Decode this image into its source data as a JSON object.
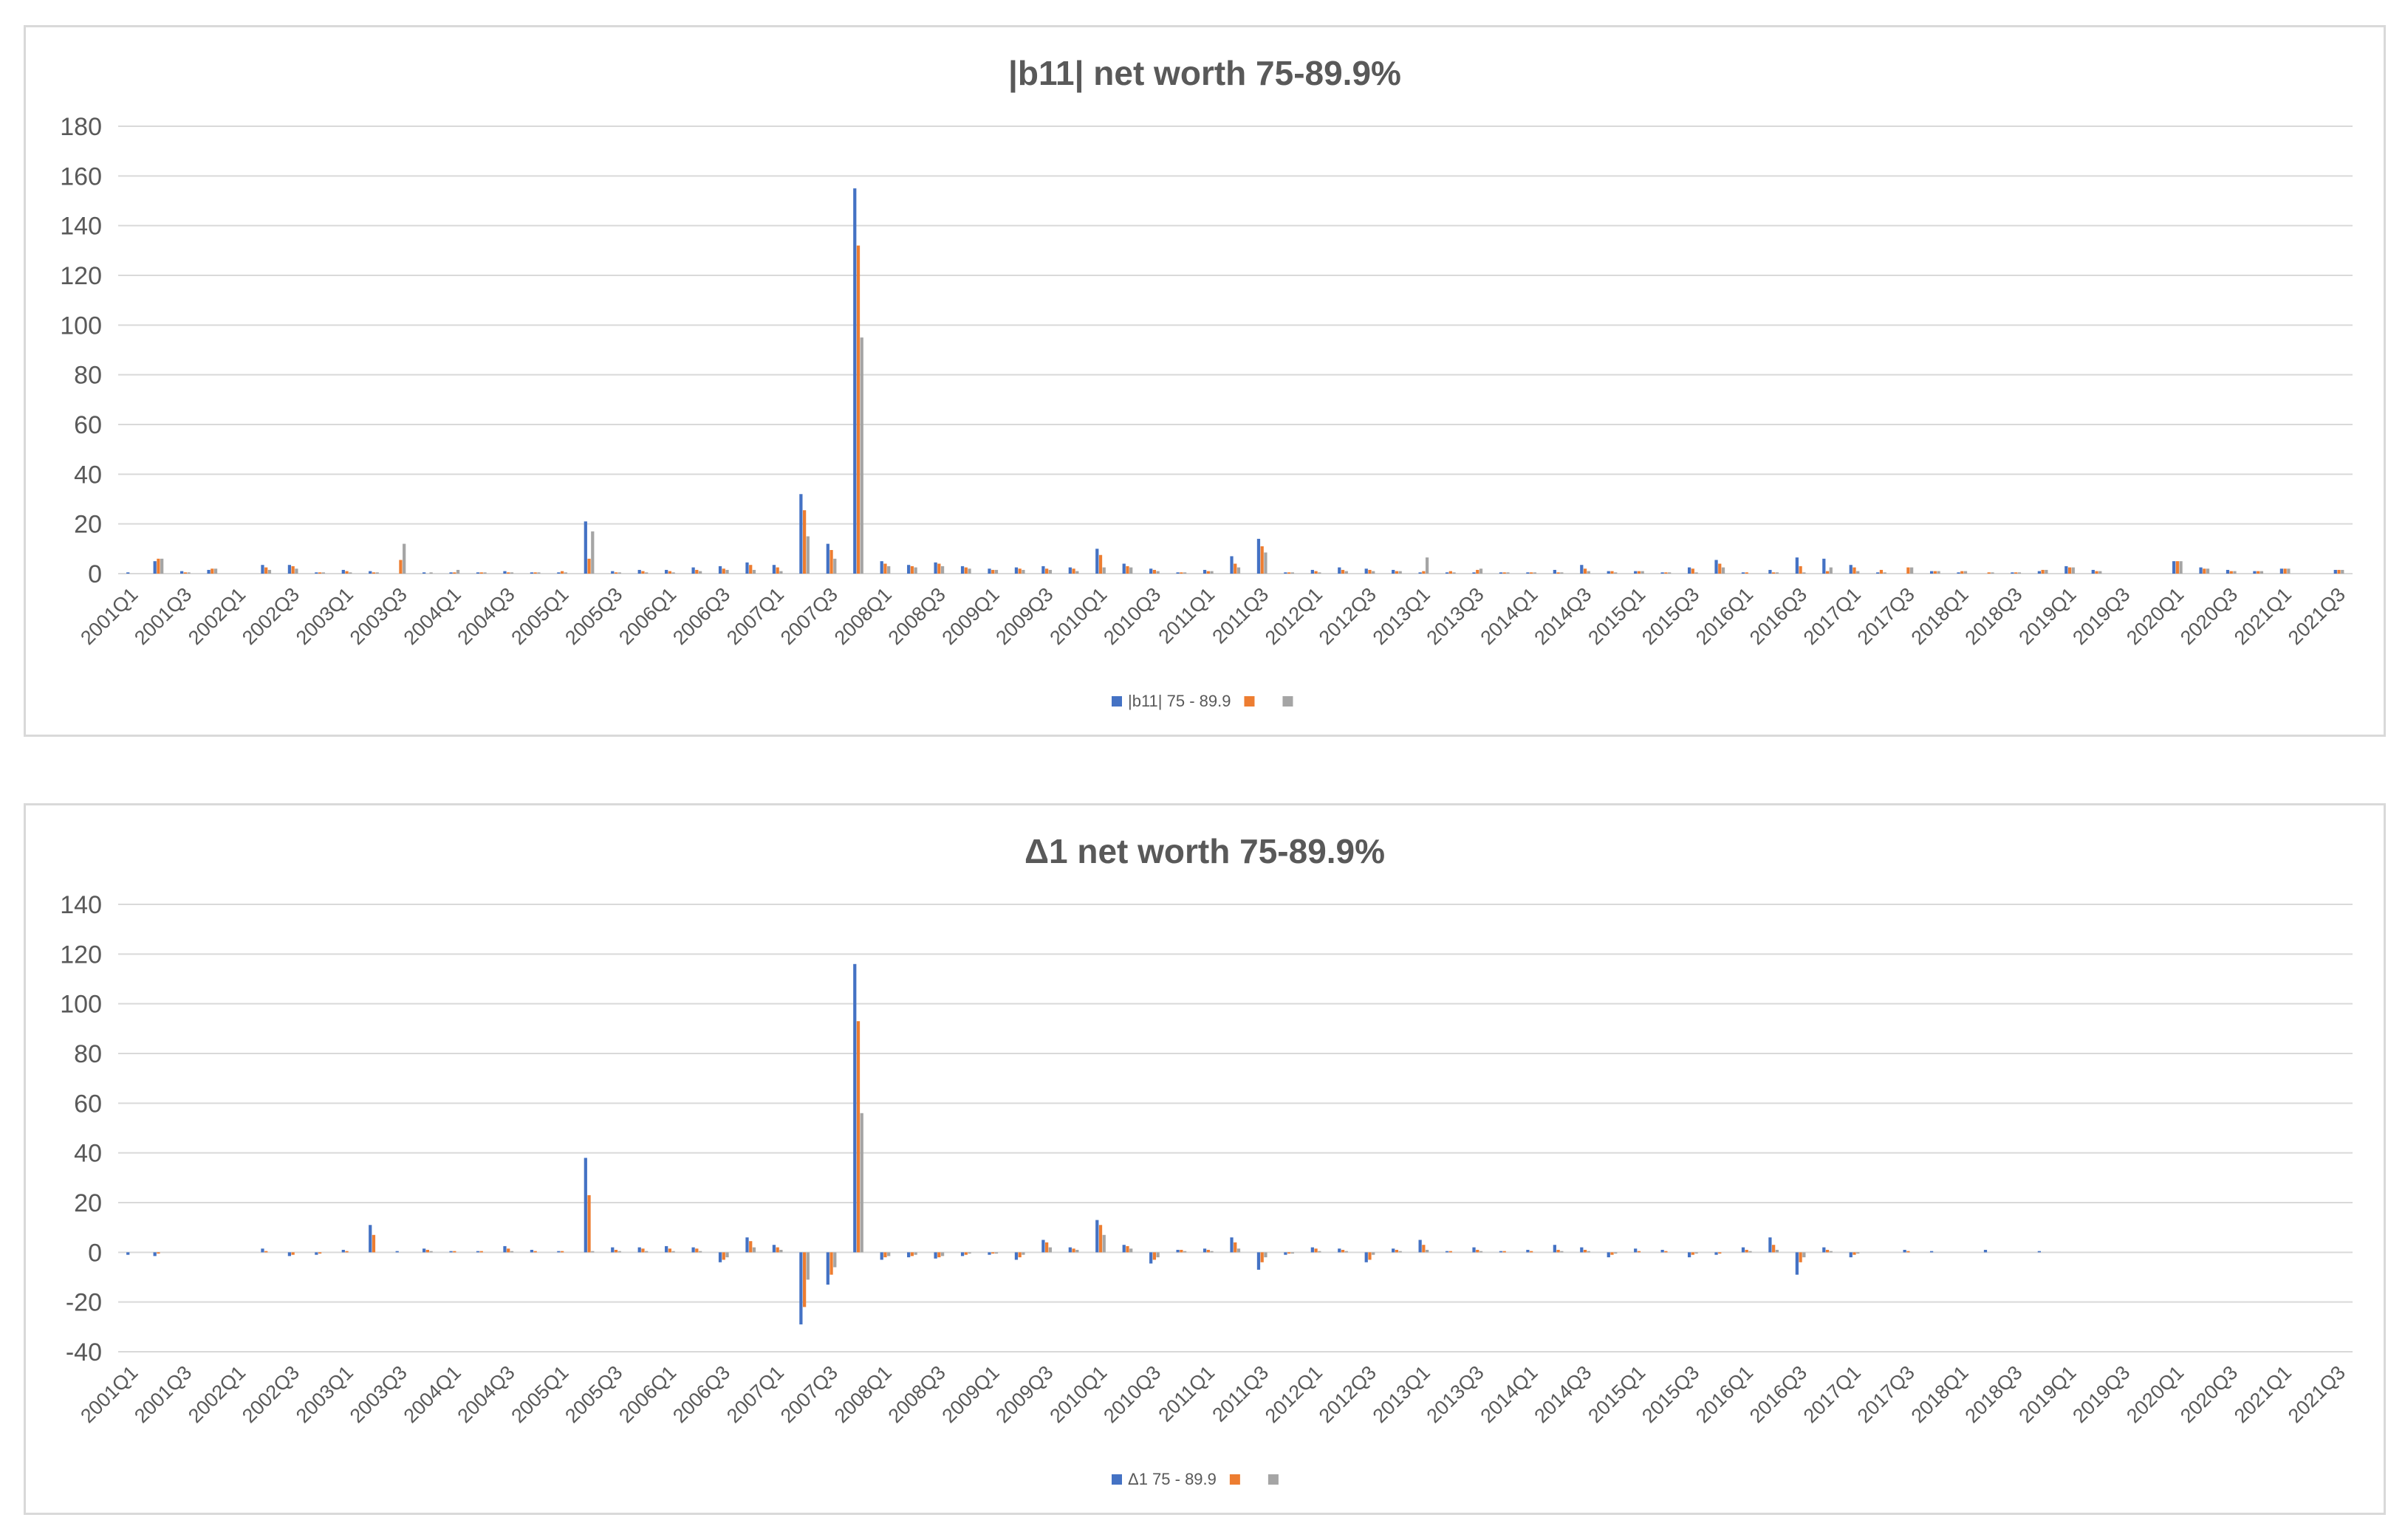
{
  "colors": {
    "series1": "#4472C4",
    "series2": "#ED7D31",
    "series3": "#A5A5A5",
    "grid": "#d9d9d9",
    "text": "#595959"
  },
  "chart_data": [
    {
      "type": "bar",
      "title": "|b11| net worth 75-89.9%",
      "xlabel": "",
      "ylabel": "",
      "ylim": [
        0,
        180
      ],
      "yticks": [
        0,
        20,
        40,
        60,
        80,
        100,
        120,
        140,
        160,
        180
      ],
      "grid": true,
      "legend_position": "bottom",
      "categories": [
        "2001Q1",
        "2001Q2",
        "2001Q3",
        "2001Q4",
        "2002Q1",
        "2002Q2",
        "2002Q3",
        "2002Q4",
        "2003Q1",
        "2003Q2",
        "2003Q3",
        "2003Q4",
        "2004Q1",
        "2004Q2",
        "2004Q3",
        "2004Q4",
        "2005Q1",
        "2005Q2",
        "2005Q3",
        "2005Q4",
        "2006Q1",
        "2006Q2",
        "2006Q3",
        "2006Q4",
        "2007Q1",
        "2007Q2",
        "2007Q3",
        "2007Q4",
        "2008Q1",
        "2008Q2",
        "2008Q3",
        "2008Q4",
        "2009Q1",
        "2009Q2",
        "2009Q3",
        "2009Q4",
        "2010Q1",
        "2010Q2",
        "2010Q3",
        "2010Q4",
        "2011Q1",
        "2011Q2",
        "2011Q3",
        "2011Q4",
        "2012Q1",
        "2012Q2",
        "2012Q3",
        "2012Q4",
        "2013Q1",
        "2013Q2",
        "2013Q3",
        "2013Q4",
        "2014Q1",
        "2014Q2",
        "2014Q3",
        "2014Q4",
        "2015Q1",
        "2015Q2",
        "2015Q3",
        "2015Q4",
        "2016Q1",
        "2016Q2",
        "2016Q3",
        "2016Q4",
        "2017Q1",
        "2017Q2",
        "2017Q3",
        "2017Q4",
        "2018Q1",
        "2018Q2",
        "2018Q3",
        "2018Q4",
        "2019Q1",
        "2019Q2",
        "2019Q3",
        "2019Q4",
        "2020Q1",
        "2020Q2",
        "2020Q3",
        "2020Q4",
        "2021Q1",
        "2021Q2",
        "2021Q3"
      ],
      "xtick_labels": [
        "2001Q1",
        "2001Q3",
        "2002Q1",
        "2002Q3",
        "2003Q1",
        "2003Q3",
        "2004Q1",
        "2004Q3",
        "2005Q1",
        "2005Q3",
        "2006Q1",
        "2006Q3",
        "2007Q1",
        "2007Q3",
        "2008Q1",
        "2008Q3",
        "2009Q1",
        "2009Q3",
        "2010Q1",
        "2010Q3",
        "2011Q1",
        "2011Q3",
        "2012Q1",
        "2012Q3",
        "2013Q1",
        "2013Q3",
        "2014Q1",
        "2014Q3",
        "2015Q1",
        "2015Q3",
        "2016Q1",
        "2016Q3",
        "2017Q1",
        "2017Q3",
        "2018Q1",
        "2018Q3",
        "2019Q1",
        "2019Q3",
        "2020Q1",
        "2020Q3",
        "2021Q1",
        "2021Q3"
      ],
      "series": [
        {
          "name": "|b11| 75 - 89.9",
          "values": [
            0.5,
            5,
            1,
            1.5,
            0,
            3.5,
            3.5,
            0.5,
            1.5,
            1,
            0,
            0.5,
            0.5,
            0.5,
            1,
            0.5,
            0.5,
            21,
            1,
            1.5,
            1.5,
            2.5,
            3,
            4.5,
            3.5,
            32,
            12,
            155,
            5,
            3.5,
            4.5,
            3,
            2,
            2.5,
            3,
            2.5,
            10,
            4,
            2,
            0.5,
            1.5,
            7,
            14,
            0.5,
            1.5,
            2.5,
            2,
            1.5,
            0.5,
            0.5,
            0.5,
            0.5,
            0.5,
            1.5,
            3.5,
            1,
            1,
            0.5,
            2.5,
            5.5,
            0.5,
            1.5,
            6.5,
            6,
            3.5,
            0.5,
            0,
            1,
            0.5,
            0,
            0.5,
            1,
            3,
            1.5,
            0,
            0,
            5,
            2.5,
            1.5,
            1,
            2,
            0,
            1.5
          ]
        },
        {
          "name": "",
          "values": [
            0,
            6,
            0.5,
            2,
            0,
            2.5,
            3,
            0.5,
            1,
            0.5,
            5.5,
            0,
            0.5,
            0.5,
            0.5,
            0.5,
            1,
            6,
            0.5,
            1,
            1,
            1.5,
            2,
            3.5,
            2.5,
            25.5,
            9.5,
            132,
            4,
            3,
            4,
            2.5,
            1.5,
            2,
            2,
            2,
            7.5,
            3,
            1.5,
            0.5,
            1,
            4,
            11,
            0.5,
            1,
            1.5,
            1.5,
            1,
            1,
            1,
            1.5,
            0.5,
            0.5,
            0.5,
            2,
            1,
            1,
            0.5,
            2,
            4,
            0.5,
            0.5,
            3,
            1,
            2.5,
            1.5,
            2.5,
            1,
            1,
            0.5,
            0.5,
            1.5,
            2.5,
            1,
            0,
            0,
            5,
            2,
            1,
            1,
            2,
            0,
            1.5
          ]
        },
        {
          "name": "",
          "values": [
            0,
            6,
            0.5,
            2,
            0,
            1.5,
            2,
            0.5,
            0.5,
            0.5,
            12,
            0.5,
            1.5,
            0.5,
            0.5,
            0.5,
            0.5,
            17,
            0.5,
            0.5,
            0.5,
            1,
            1.5,
            1.5,
            1,
            15,
            6,
            95,
            3,
            2.5,
            3,
            2,
            1.5,
            1.5,
            1.5,
            1,
            2.5,
            2.5,
            1,
            0.5,
            1,
            2.5,
            8.5,
            0.5,
            0.5,
            1,
            1,
            1,
            6.5,
            0.5,
            2,
            0.5,
            0.5,
            0.5,
            1,
            0.5,
            1,
            0.5,
            0.5,
            2.5,
            0,
            0.5,
            0.5,
            2.5,
            1,
            0.5,
            2.5,
            1,
            1,
            0.5,
            0.5,
            1.5,
            2.5,
            1,
            0,
            0,
            5,
            2,
            1,
            1,
            2,
            0,
            1.5
          ]
        }
      ]
    },
    {
      "type": "bar",
      "title": "Δ1 net worth 75-89.9%",
      "xlabel": "",
      "ylabel": "",
      "ylim": [
        -40,
        140
      ],
      "yticks": [
        -40,
        -20,
        0,
        20,
        40,
        60,
        80,
        100,
        120,
        140
      ],
      "grid": true,
      "legend_position": "bottom",
      "categories": [
        "2001Q1",
        "2001Q2",
        "2001Q3",
        "2001Q4",
        "2002Q1",
        "2002Q2",
        "2002Q3",
        "2002Q4",
        "2003Q1",
        "2003Q2",
        "2003Q3",
        "2003Q4",
        "2004Q1",
        "2004Q2",
        "2004Q3",
        "2004Q4",
        "2005Q1",
        "2005Q2",
        "2005Q3",
        "2005Q4",
        "2006Q1",
        "2006Q2",
        "2006Q3",
        "2006Q4",
        "2007Q1",
        "2007Q2",
        "2007Q3",
        "2007Q4",
        "2008Q1",
        "2008Q2",
        "2008Q3",
        "2008Q4",
        "2009Q1",
        "2009Q2",
        "2009Q3",
        "2009Q4",
        "2010Q1",
        "2010Q2",
        "2010Q3",
        "2010Q4",
        "2011Q1",
        "2011Q2",
        "2011Q3",
        "2011Q4",
        "2012Q1",
        "2012Q2",
        "2012Q3",
        "2012Q4",
        "2013Q1",
        "2013Q2",
        "2013Q3",
        "2013Q4",
        "2014Q1",
        "2014Q2",
        "2014Q3",
        "2014Q4",
        "2015Q1",
        "2015Q2",
        "2015Q3",
        "2015Q4",
        "2016Q1",
        "2016Q2",
        "2016Q3",
        "2016Q4",
        "2017Q1",
        "2017Q2",
        "2017Q3",
        "2017Q4",
        "2018Q1",
        "2018Q2",
        "2018Q3",
        "2018Q4",
        "2019Q1",
        "2019Q2",
        "2019Q3",
        "2019Q4",
        "2020Q1",
        "2020Q2",
        "2020Q3",
        "2020Q4",
        "2021Q1",
        "2021Q2",
        "2021Q3"
      ],
      "xtick_labels": [
        "2001Q1",
        "2001Q3",
        "2002Q1",
        "2002Q3",
        "2003Q1",
        "2003Q3",
        "2004Q1",
        "2004Q3",
        "2005Q1",
        "2005Q3",
        "2006Q1",
        "2006Q3",
        "2007Q1",
        "2007Q3",
        "2008Q1",
        "2008Q3",
        "2009Q1",
        "2009Q3",
        "2010Q1",
        "2010Q3",
        "2011Q1",
        "2011Q3",
        "2012Q1",
        "2012Q3",
        "2013Q1",
        "2013Q3",
        "2014Q1",
        "2014Q3",
        "2015Q1",
        "2015Q3",
        "2016Q1",
        "2016Q3",
        "2017Q1",
        "2017Q3",
        "2018Q1",
        "2018Q3",
        "2019Q1",
        "2019Q3",
        "2020Q1",
        "2020Q3",
        "2021Q1",
        "2021Q3"
      ],
      "series": [
        {
          "name": "Δ1 75 - 89.9",
          "values": [
            -1,
            -1.5,
            0,
            0,
            0,
            1.5,
            -1.5,
            -1,
            1,
            11,
            0.5,
            1.5,
            0.5,
            0.5,
            2.5,
            1,
            0.5,
            38,
            2,
            2,
            2.5,
            2,
            -4,
            6,
            3,
            -29,
            -13,
            116,
            -3,
            -2,
            -2.5,
            -1.5,
            -1,
            -3,
            5,
            2,
            13,
            3,
            -4.5,
            1,
            1.5,
            6,
            -7,
            -1,
            2,
            1.5,
            -4,
            1.5,
            5,
            0.5,
            2,
            0.5,
            1,
            3,
            2,
            -2,
            1.5,
            1,
            -2,
            -1,
            2,
            6,
            -9,
            2,
            -2,
            0,
            1,
            0.5,
            0,
            1,
            0,
            0.5,
            0,
            0,
            0,
            0,
            0,
            0,
            0,
            0,
            0,
            0,
            0
          ]
        },
        {
          "name": "",
          "values": [
            0,
            -0.5,
            0,
            0,
            0,
            0.5,
            -1,
            -0.5,
            0.5,
            7,
            0,
            1,
            0.5,
            0.5,
            1.5,
            0.5,
            0.5,
            23,
            1,
            1.5,
            1.5,
            1.5,
            -3,
            4.5,
            2,
            -22,
            -9,
            93,
            -2,
            -1.5,
            -2,
            -1,
            -0.5,
            -2,
            4,
            1.5,
            11,
            2.5,
            -3,
            1,
            1,
            4,
            -4,
            -0.5,
            1.5,
            1,
            -3,
            1,
            3,
            0.5,
            1,
            0.5,
            0.5,
            1,
            1,
            -1,
            0.5,
            0.5,
            -1,
            -0.5,
            1,
            3,
            -4,
            1,
            -1,
            0,
            0.5,
            0,
            0,
            0,
            0,
            0,
            0,
            0,
            0,
            0,
            0,
            0,
            0,
            0,
            0,
            0,
            0
          ]
        },
        {
          "name": "",
          "values": [
            0,
            0,
            0,
            0,
            0,
            0,
            0,
            0,
            0,
            0,
            0,
            0.5,
            0,
            0,
            0.5,
            0,
            0,
            0.5,
            0.5,
            0.5,
            0.5,
            0.5,
            -2,
            2,
            1,
            -11,
            -6,
            56,
            -1.5,
            -1,
            -1.5,
            -0.5,
            -0.5,
            -1,
            2,
            1,
            7,
            1.5,
            -2,
            0.5,
            0.5,
            1.5,
            -2,
            -0.5,
            0.5,
            0.5,
            -1,
            0.5,
            1,
            0,
            0.5,
            0,
            0,
            0.5,
            0.5,
            -0.5,
            0,
            0,
            -0.5,
            0,
            0.5,
            1,
            -2,
            0.5,
            -0.5,
            0,
            0,
            0,
            0,
            0,
            0,
            0,
            0,
            0,
            0,
            0,
            0,
            0,
            0,
            0,
            0,
            0,
            0
          ]
        }
      ]
    }
  ]
}
